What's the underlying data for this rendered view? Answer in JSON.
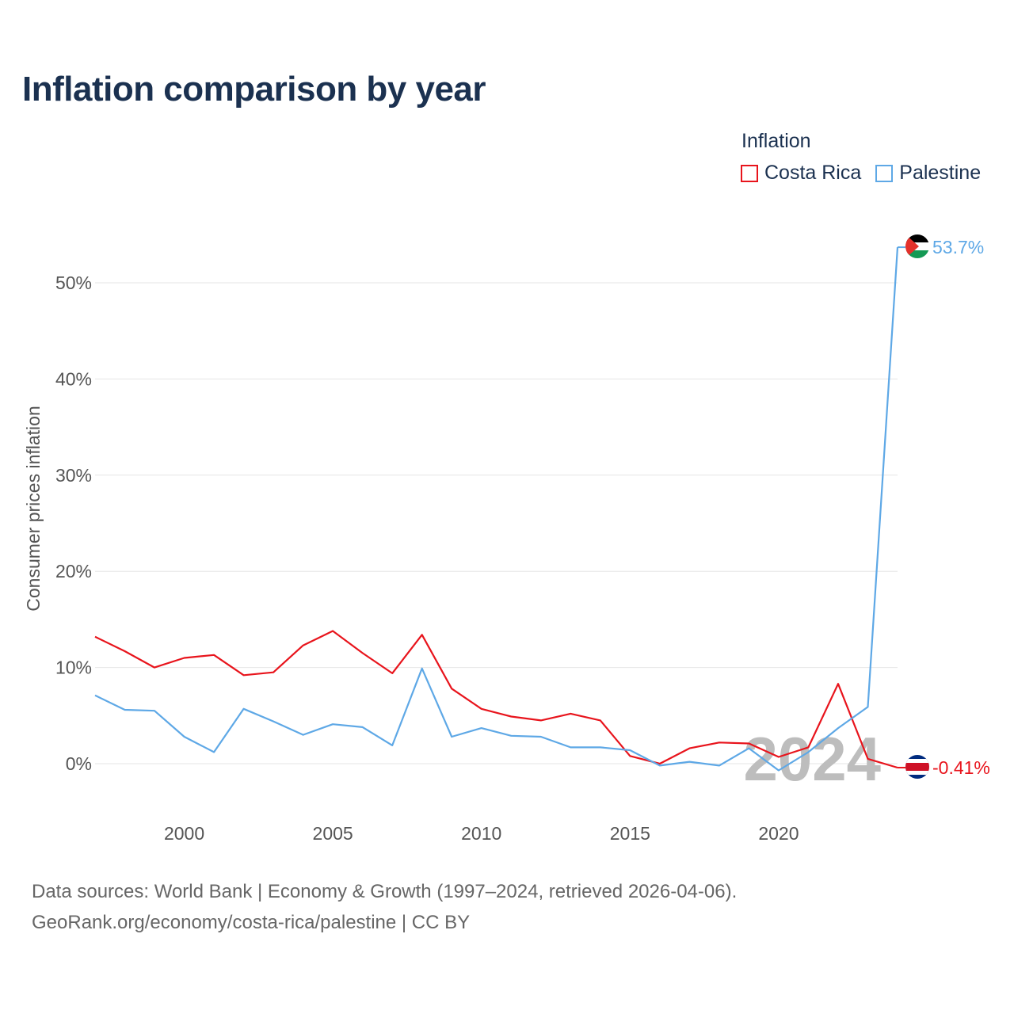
{
  "title": "Inflation comparison by year",
  "legend": {
    "title": "Inflation",
    "items": [
      {
        "label": "Costa Rica",
        "color": "#e8141c"
      },
      {
        "label": "Palestine",
        "color": "#5ea8e6"
      }
    ]
  },
  "chart_data": {
    "type": "line",
    "title": "Inflation comparison by year",
    "xlabel": "",
    "ylabel": "Consumer prices inflation",
    "xlim": [
      1997,
      2024
    ],
    "ylim": [
      -4,
      56
    ],
    "x_ticks": [
      2000,
      2005,
      2010,
      2015,
      2020
    ],
    "x_tick_labels": [
      "2000",
      "2005",
      "2010",
      "2015",
      "2020"
    ],
    "y_ticks": [
      0,
      10,
      20,
      30,
      40,
      50
    ],
    "y_tick_labels": [
      "0%",
      "10%",
      "20%",
      "30%",
      "40%",
      "50%"
    ],
    "grid": true,
    "legend_position": "top-right",
    "year_watermark": "2024",
    "x": [
      1997,
      1998,
      1999,
      2000,
      2001,
      2002,
      2003,
      2004,
      2005,
      2006,
      2007,
      2008,
      2009,
      2010,
      2011,
      2012,
      2013,
      2014,
      2015,
      2016,
      2017,
      2018,
      2019,
      2020,
      2021,
      2022,
      2023,
      2024
    ],
    "series": [
      {
        "name": "Costa Rica",
        "color": "#e8141c",
        "end_label": "-0.41%",
        "values": [
          13.2,
          11.7,
          10.0,
          11.0,
          11.3,
          9.2,
          9.5,
          12.3,
          13.8,
          11.5,
          9.4,
          13.4,
          7.8,
          5.7,
          4.9,
          4.5,
          5.2,
          4.5,
          0.8,
          0.0,
          1.6,
          2.2,
          2.1,
          0.7,
          1.7,
          8.3,
          0.5,
          -0.41
        ]
      },
      {
        "name": "Palestine",
        "color": "#5ea8e6",
        "end_label": "53.7%",
        "values": [
          7.1,
          5.6,
          5.5,
          2.8,
          1.2,
          5.7,
          4.4,
          3.0,
          4.1,
          3.8,
          1.9,
          9.9,
          2.8,
          3.7,
          2.9,
          2.8,
          1.7,
          1.7,
          1.4,
          -0.2,
          0.2,
          -0.2,
          1.6,
          -0.7,
          1.2,
          3.7,
          5.9,
          53.7
        ]
      }
    ]
  },
  "footer": {
    "line1": "Data sources: World Bank | Economy & Growth (1997–2024, retrieved 2026-04-06).",
    "line2": "GeoRank.org/economy/costa-rica/palestine | CC BY"
  }
}
